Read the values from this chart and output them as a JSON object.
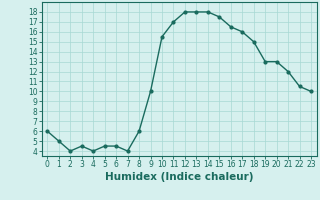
{
  "x": [
    0,
    1,
    2,
    3,
    4,
    5,
    6,
    7,
    8,
    9,
    10,
    11,
    12,
    13,
    14,
    15,
    16,
    17,
    18,
    19,
    20,
    21,
    22,
    23
  ],
  "y": [
    6,
    5,
    4,
    4.5,
    4,
    4.5,
    4.5,
    4,
    6,
    10,
    15.5,
    17,
    18,
    18,
    18,
    17.5,
    16.5,
    16,
    15,
    13,
    13,
    12,
    10.5,
    10
  ],
  "line_color": "#1a6b5e",
  "marker": "o",
  "marker_size": 2.0,
  "bg_color": "#d6f0ee",
  "grid_color": "#a8d8d4",
  "xlabel": "Humidex (Indice chaleur)",
  "ylim": [
    3.5,
    19
  ],
  "xlim": [
    -0.5,
    23.5
  ],
  "yticks": [
    4,
    5,
    6,
    7,
    8,
    9,
    10,
    11,
    12,
    13,
    14,
    15,
    16,
    17,
    18
  ],
  "xticks": [
    0,
    1,
    2,
    3,
    4,
    5,
    6,
    7,
    8,
    9,
    10,
    11,
    12,
    13,
    14,
    15,
    16,
    17,
    18,
    19,
    20,
    21,
    22,
    23
  ],
  "tick_fontsize": 5.5,
  "xlabel_fontsize": 7.5,
  "line_width": 1.0
}
